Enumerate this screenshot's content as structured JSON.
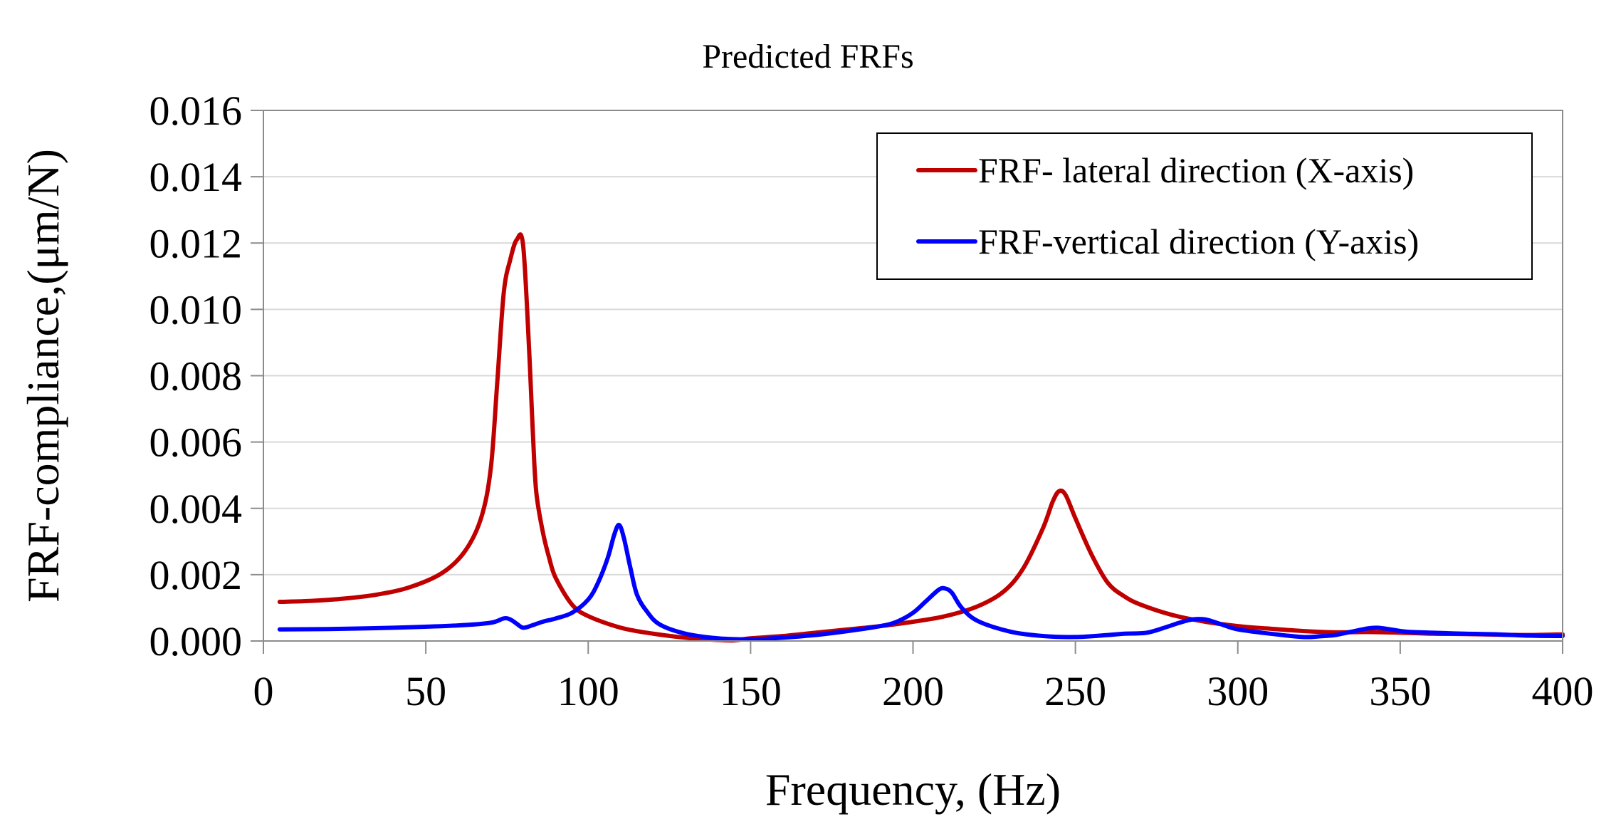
{
  "chart_data": {
    "type": "line",
    "title": "Predicted FRFs",
    "xlabel": "Frequency, (Hz)",
    "ylabel": "FRF-compliance,(μm/N)",
    "xlim": [
      0,
      400
    ],
    "ylim": [
      0,
      0.016
    ],
    "xticks": [
      0,
      50,
      100,
      150,
      200,
      250,
      300,
      350,
      400
    ],
    "xtick_labels": [
      "0",
      "50",
      "100",
      "150",
      "200",
      "250",
      "300",
      "350",
      "400"
    ],
    "yticks": [
      0,
      0.002,
      0.004,
      0.006,
      0.008,
      0.01,
      0.012,
      0.014,
      0.016
    ],
    "ytick_labels": [
      "0.000",
      "0.002",
      "0.004",
      "0.006",
      "0.008",
      "0.010",
      "0.012",
      "0.014",
      "0.016"
    ],
    "grid": true,
    "legend_position": "top-right",
    "series": [
      {
        "name": "FRF- lateral direction (X-axis)",
        "color": "#c00000",
        "x": [
          5,
          15,
          25,
          35,
          45,
          55,
          62,
          67,
          70,
          72,
          74,
          76,
          78,
          80,
          82,
          83,
          84,
          86,
          88,
          90,
          95,
          100,
          110,
          120,
          130,
          140,
          145,
          150,
          160,
          170,
          180,
          190,
          200,
          210,
          220,
          228,
          234,
          240,
          243,
          245,
          247,
          250,
          255,
          260,
          265,
          270,
          280,
          290,
          300,
          310,
          320,
          330,
          340,
          350,
          360,
          370,
          380,
          390,
          400
        ],
        "y": [
          0.00118,
          0.00121,
          0.00128,
          0.0014,
          0.00162,
          0.00205,
          0.0027,
          0.0037,
          0.0052,
          0.0078,
          0.0105,
          0.0115,
          0.0121,
          0.0119,
          0.0084,
          0.0062,
          0.0045,
          0.0033,
          0.0025,
          0.0019,
          0.0011,
          0.00075,
          0.0004,
          0.00022,
          0.0001,
          3e-05,
          2e-05,
          8e-05,
          0.00015,
          0.00025,
          0.00035,
          0.00045,
          0.00058,
          0.00075,
          0.00105,
          0.0015,
          0.0022,
          0.0034,
          0.0042,
          0.00452,
          0.0044,
          0.0037,
          0.0026,
          0.00175,
          0.00135,
          0.0011,
          0.00078,
          0.00058,
          0.00045,
          0.00037,
          0.0003,
          0.00026,
          0.00027,
          0.00025,
          0.00022,
          0.00021,
          0.00019,
          0.00018,
          0.0002
        ]
      },
      {
        "name": "FRF-vertical direction (Y-axis)",
        "color": "#0000ff",
        "x": [
          5,
          20,
          40,
          60,
          70,
          74,
          76,
          78,
          80,
          83,
          86,
          90,
          95,
          100,
          103,
          106,
          108,
          109.5,
          111,
          113,
          115,
          118,
          122,
          130,
          140,
          150,
          160,
          170,
          180,
          190,
          195,
          200,
          204,
          208,
          210,
          212,
          215,
          220,
          230,
          240,
          250,
          260,
          265,
          272,
          278,
          282,
          286,
          290,
          295,
          300,
          310,
          320,
          325,
          330,
          335,
          340,
          343,
          347,
          352,
          360,
          370,
          380,
          390,
          400
        ],
        "y": [
          0.00035,
          0.00036,
          0.0004,
          0.00047,
          0.00055,
          0.00068,
          0.00065,
          0.00052,
          0.0004,
          0.00048,
          0.00058,
          0.00068,
          0.00085,
          0.00125,
          0.00175,
          0.0025,
          0.0032,
          0.0035,
          0.0031,
          0.0022,
          0.0014,
          0.0009,
          0.0005,
          0.00022,
          8e-05,
          5e-05,
          0.0001,
          0.00018,
          0.0003,
          0.00045,
          0.00058,
          0.00085,
          0.0012,
          0.00155,
          0.00158,
          0.00145,
          0.001,
          0.0006,
          0.00028,
          0.00015,
          0.00012,
          0.00018,
          0.00022,
          0.00025,
          0.00042,
          0.00055,
          0.00065,
          0.00065,
          0.0005,
          0.00035,
          0.00022,
          0.00012,
          0.00014,
          0.00018,
          0.00028,
          0.00038,
          0.0004,
          0.00035,
          0.00028,
          0.00025,
          0.00022,
          0.0002,
          0.00016,
          0.00015
        ]
      }
    ]
  }
}
